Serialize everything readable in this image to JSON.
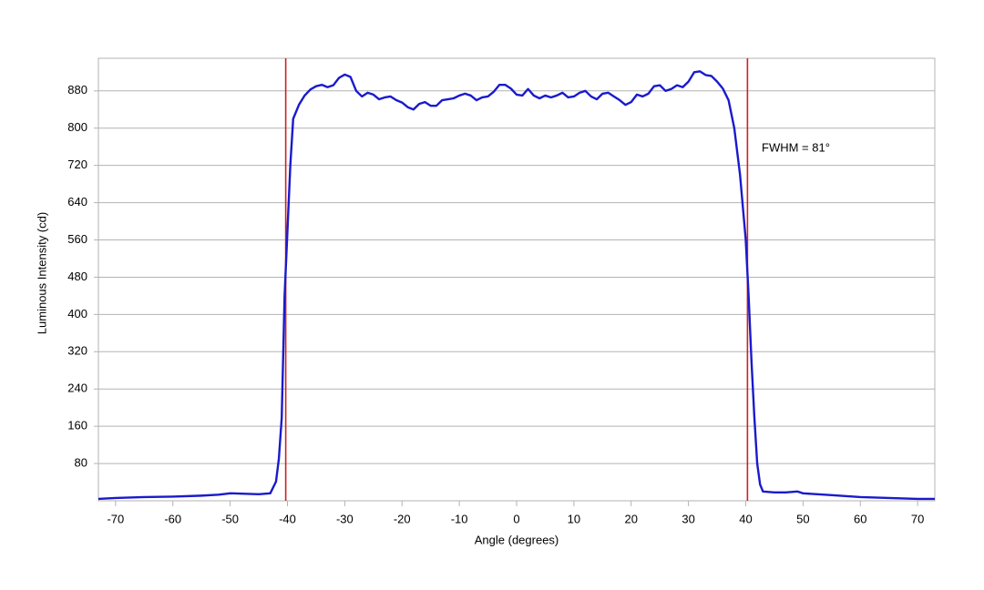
{
  "chart_data": {
    "type": "line",
    "xlabel": "Angle (degrees)",
    "ylabel": "Luminous Intensity (cd)",
    "annotation": "FWHM = 81°",
    "x": [
      -73,
      -70,
      -65,
      -60,
      -55,
      -52,
      -50,
      -45,
      -43,
      -42,
      -41.5,
      -41,
      -40.5,
      -39.5,
      -39,
      -38,
      -37,
      -36,
      -35,
      -34,
      -33,
      -32,
      -31,
      -30,
      -29,
      -28,
      -27,
      -26,
      -25,
      -24,
      -23,
      -22,
      -21,
      -20,
      -19,
      -18,
      -17,
      -16,
      -15,
      -14,
      -13,
      -12,
      -11,
      -10,
      -9,
      -8,
      -7,
      -6,
      -5,
      -4,
      -3,
      -2,
      -1,
      0,
      1,
      2,
      3,
      4,
      5,
      6,
      7,
      8,
      9,
      10,
      11,
      12,
      13,
      14,
      15,
      16,
      17,
      18,
      19,
      20,
      21,
      22,
      23,
      24,
      25,
      26,
      27,
      28,
      29,
      30,
      31,
      32,
      33,
      34,
      35,
      36,
      37,
      38,
      39,
      40,
      40.5,
      41,
      41.5,
      42,
      42.5,
      43,
      45,
      47,
      49,
      50,
      55,
      60,
      65,
      70,
      73
    ],
    "series": [
      {
        "name": "Luminous Intensity",
        "color": "#1a1acc",
        "values": [
          4,
          6,
          8,
          9,
          11,
          13,
          16,
          14,
          16,
          41,
          90,
          178,
          440,
          720,
          820,
          850,
          870,
          883,
          890,
          893,
          888,
          892,
          908,
          915,
          910,
          880,
          868,
          876,
          872,
          862,
          866,
          868,
          860,
          855,
          845,
          840,
          852,
          856,
          848,
          848,
          860,
          862,
          864,
          870,
          874,
          870,
          860,
          866,
          868,
          878,
          893,
          893,
          885,
          872,
          870,
          884,
          870,
          864,
          870,
          866,
          870,
          876,
          866,
          868,
          876,
          880,
          868,
          862,
          874,
          876,
          868,
          860,
          850,
          856,
          872,
          868,
          874,
          890,
          892,
          880,
          884,
          892,
          888,
          900,
          920,
          922,
          914,
          912,
          900,
          885,
          860,
          800,
          700,
          560,
          440,
          300,
          180,
          80,
          35,
          20,
          18,
          18,
          20,
          16,
          12,
          8,
          6,
          4,
          4
        ]
      }
    ],
    "markers": [
      -40.3,
      40.3
    ],
    "marker_color": "#cc2222",
    "xlim": [
      -73,
      73
    ],
    "xticks": [
      -70,
      -60,
      -50,
      -40,
      -30,
      -20,
      -10,
      0,
      10,
      20,
      30,
      40,
      50,
      60,
      70
    ],
    "ylim": [
      0,
      950
    ],
    "yticks": [
      80,
      160,
      240,
      320,
      400,
      480,
      560,
      640,
      720,
      800,
      880
    ],
    "grid": true
  }
}
